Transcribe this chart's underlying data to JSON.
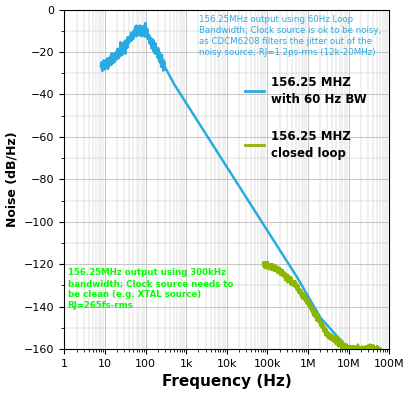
{
  "xlabel": "Frequency (Hz)",
  "ylabel": "Noise (dB/Hz)",
  "xlim": [
    1,
    100000000.0
  ],
  "ylim": [
    -160,
    0
  ],
  "yticks": [
    0,
    -20,
    -40,
    -60,
    -80,
    -100,
    -120,
    -140,
    -160
  ],
  "xtick_labels": [
    "1",
    "10",
    "100",
    "1k",
    "10k",
    "100k",
    "1M",
    "10M",
    "100M"
  ],
  "xtick_vals": [
    1,
    10,
    100,
    1000,
    10000,
    100000,
    1000000,
    10000000,
    100000000
  ],
  "blue_color": "#29ABE2",
  "green_color": "#8DB600",
  "annotation_blue_color": "#29ABE2",
  "annotation_green_color": "#00FF00",
  "legend_blue_label": "156.25 MHZ\nwith 60 Hz BW",
  "legend_green_label": "156.25 MHZ\nclosed loop",
  "annot_blue": "156.25MHz output using 60Hz Loop\nBandwidth; Clock source is ok to be noisy,\nas CDCM6208 filters the jitter out of the\nnoisy source; RJ=1.2ps-rms (12k-20MHz)",
  "annot_green": "156.25MHz output using 300kHz\nbandwidth; Clock source needs to\nbe clean (e.g. XTAL source)\nRJ=265fs-rms",
  "bg_color": "#FFFFFF",
  "grid_color": "#BBBBBB"
}
